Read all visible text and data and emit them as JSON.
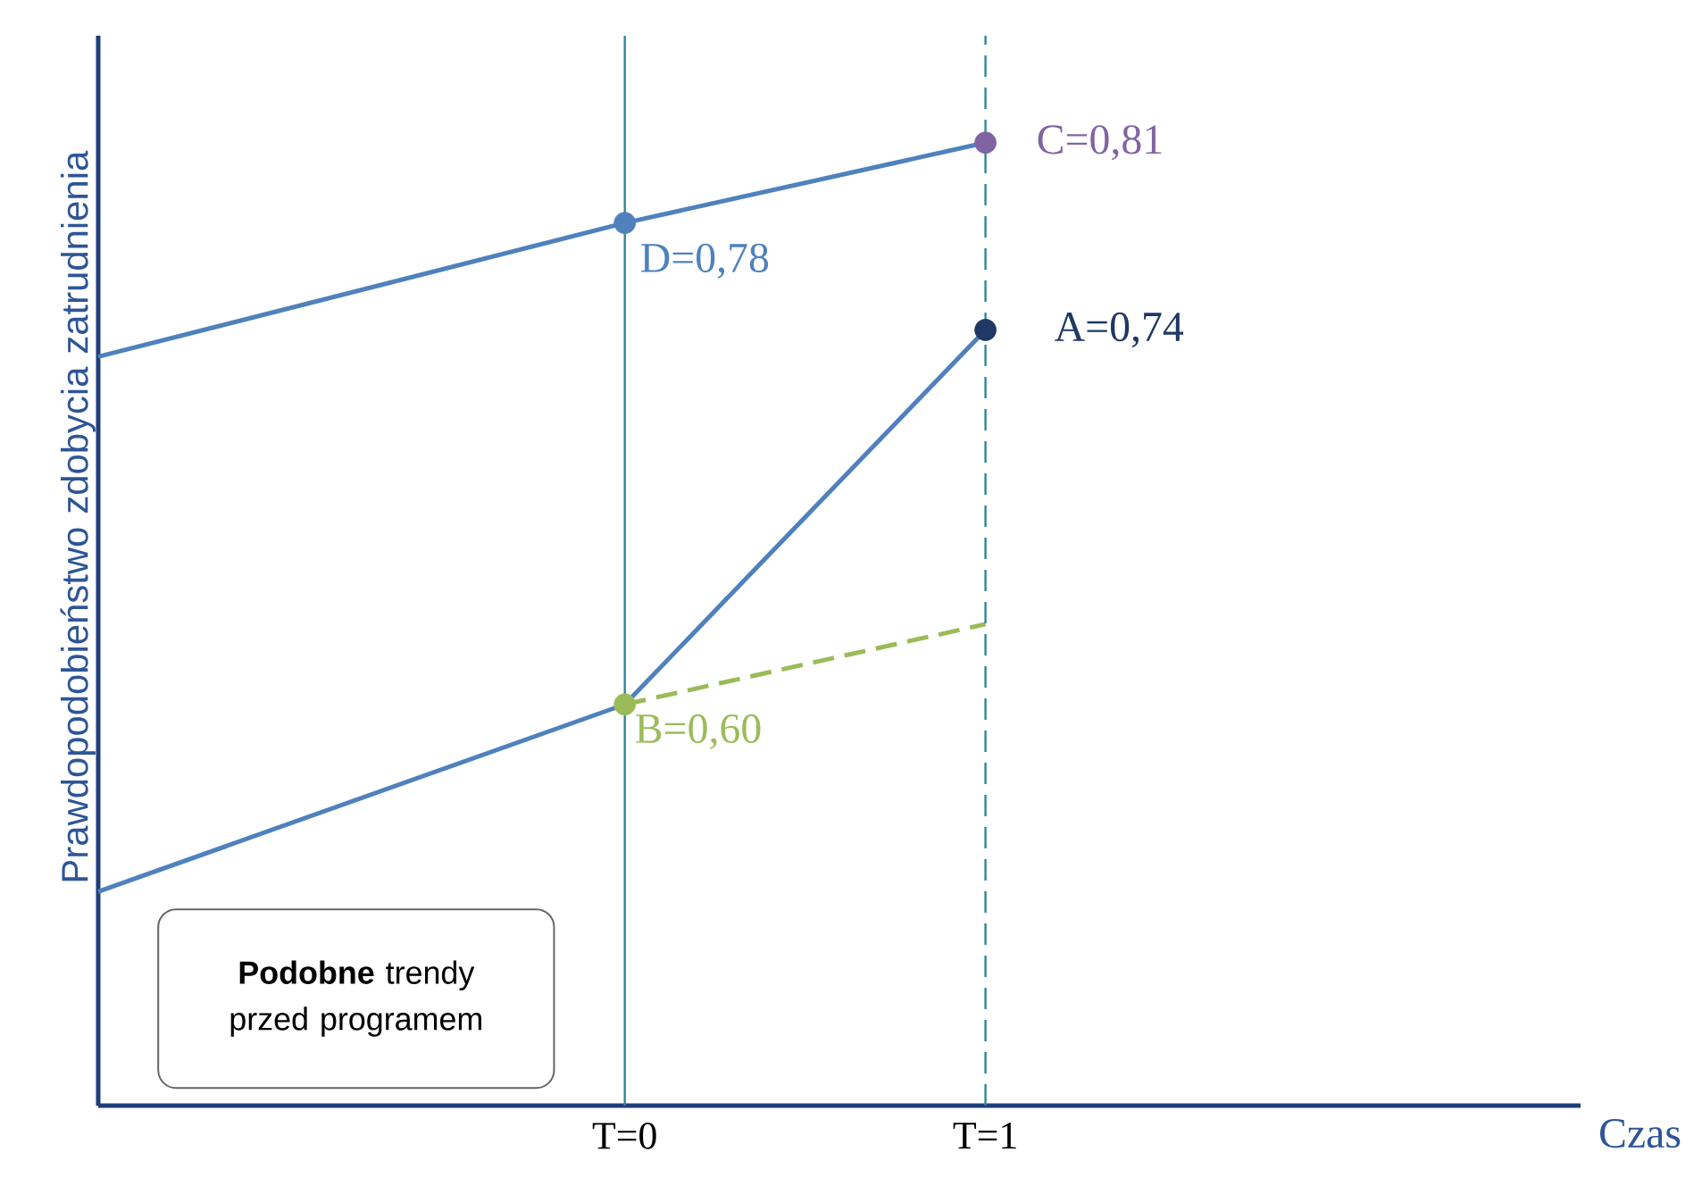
{
  "chart_data": {
    "type": "line",
    "xlabel": "Czas",
    "ylabel": "Prawdopodobieństwo zdobycia zatrudnienia",
    "xlim": [
      -1.46,
      2.65
    ],
    "ylim": [
      0.45,
      0.85
    ],
    "xticks": [
      {
        "value": 0,
        "label": "T=0"
      },
      {
        "value": 1,
        "label": "T=1"
      }
    ],
    "tick_labels": "x",
    "ref_lines": [
      {
        "axis": "x",
        "value": 0,
        "color": "#31859c"
      },
      {
        "axis": "x",
        "value": 1,
        "color": "#31859c",
        "line_style": "dashed"
      }
    ],
    "series": [
      {
        "type": "line",
        "color": "#4f81bd",
        "x": [
          -1.46,
          0,
          1
        ],
        "values": [
          0.73,
          0.78,
          0.81
        ]
      },
      {
        "type": "line",
        "color": "#4f81bd",
        "x": [
          -1.46,
          0,
          1
        ],
        "values": [
          0.53,
          0.6,
          0.74
        ]
      },
      {
        "type": "line",
        "color": "#9bbb59",
        "line_style": "dashed",
        "x": [
          0,
          1
        ],
        "values": [
          0.6,
          0.63
        ]
      },
      {
        "type": "scatter",
        "marker": "circle",
        "x": [
          0,
          1,
          1,
          0
        ],
        "values": [
          0.78,
          0.81,
          0.74,
          0.6
        ],
        "colors": [
          "#4f81bd",
          "#8064a2",
          "#1f3864",
          "#9bbb59"
        ],
        "value_labels": [
          "D=0,78",
          "C=0,81",
          "A=0,74",
          "B=0,60"
        ]
      }
    ],
    "annotations": [
      "**Podobne** trendy przed programem"
    ]
  }
}
